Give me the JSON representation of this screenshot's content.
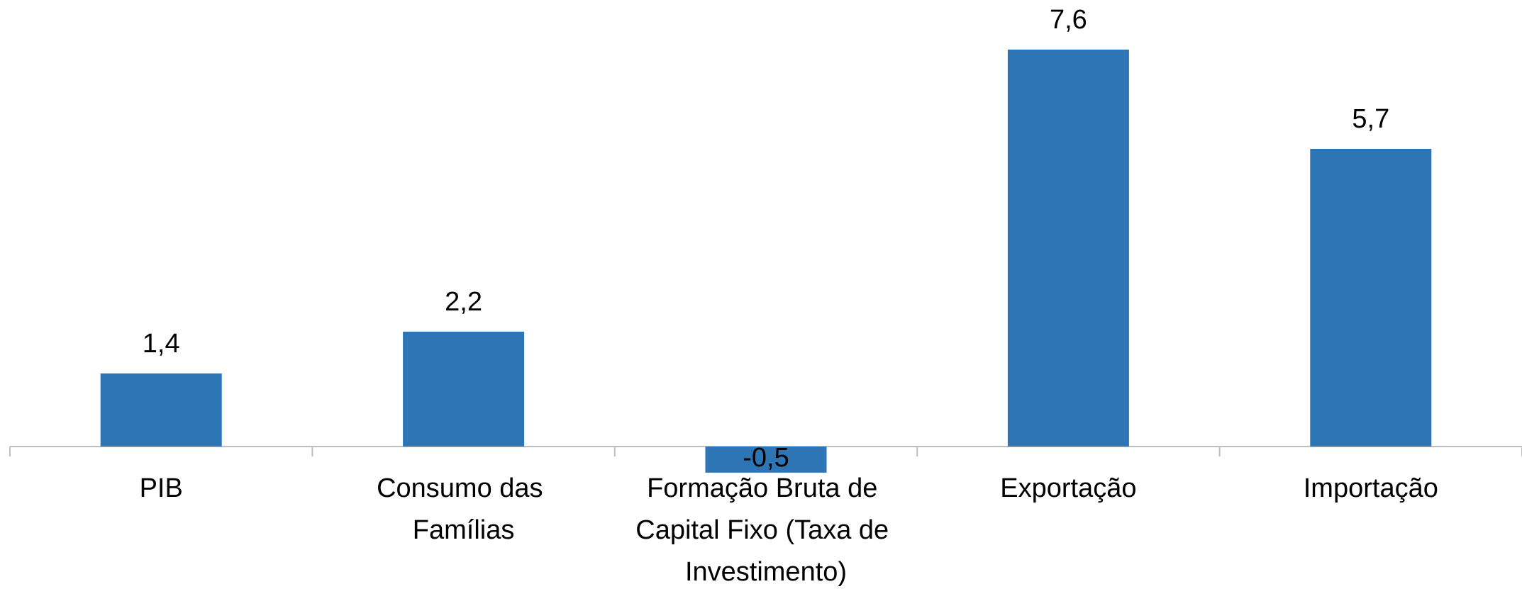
{
  "chart_data": {
    "type": "bar",
    "categories": [
      "PIB",
      "Consumo das Famílias",
      "Formação Bruta de Capital Fixo (Taxa de Investimento)",
      "Exportação",
      "Importação"
    ],
    "values": [
      1.4,
      2.2,
      -0.5,
      7.6,
      5.7
    ],
    "value_labels": [
      "1,4",
      "2,2",
      "-0,5",
      "7,6",
      "5,7"
    ],
    "color": "#2e75b6"
  }
}
